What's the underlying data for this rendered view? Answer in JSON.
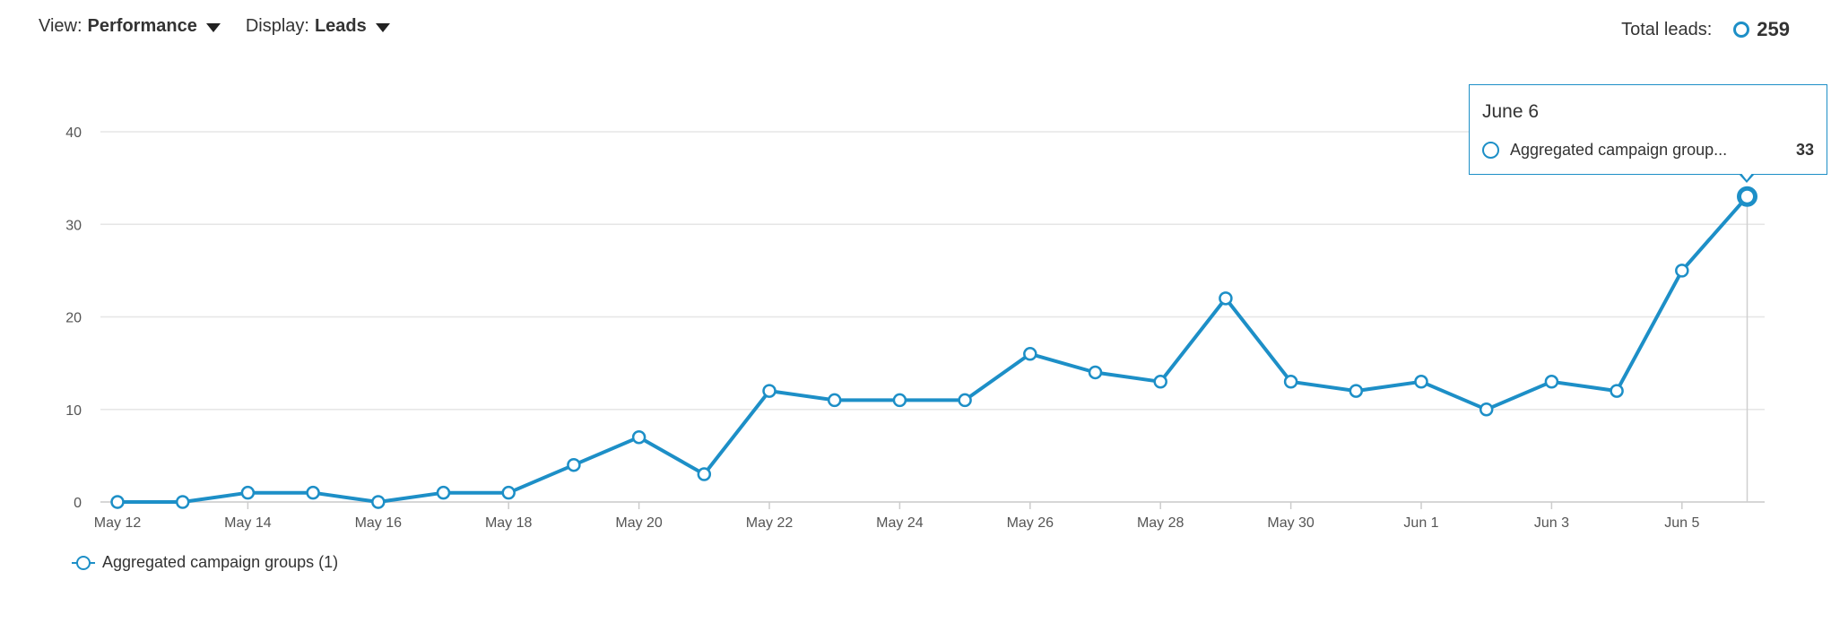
{
  "toolbar": {
    "view_label": "View:",
    "view_value": "Performance",
    "display_label": "Display:",
    "display_value": "Leads"
  },
  "total": {
    "label": "Total leads:",
    "value": "259"
  },
  "tooltip": {
    "date": "June 6",
    "series_label": "Aggregated campaign group...",
    "value": "33"
  },
  "legend": {
    "label": "Aggregated campaign groups (1)"
  },
  "colors": {
    "series": "#1d8fc7",
    "grid": "#e6e6e6"
  },
  "chart_data": {
    "type": "line",
    "title": "",
    "xlabel": "",
    "ylabel": "",
    "ylim": [
      0,
      40
    ],
    "yticks": [
      0,
      10,
      20,
      30,
      40
    ],
    "x": [
      "May 12",
      "May 13",
      "May 14",
      "May 15",
      "May 16",
      "May 17",
      "May 18",
      "May 19",
      "May 20",
      "May 21",
      "May 22",
      "May 23",
      "May 24",
      "May 25",
      "May 26",
      "May 27",
      "May 28",
      "May 29",
      "May 30",
      "May 31",
      "Jun 1",
      "Jun 2",
      "Jun 3",
      "Jun 4",
      "Jun 5",
      "Jun 6"
    ],
    "xtick_labels": [
      "May 12",
      "May 14",
      "May 16",
      "May 18",
      "May 20",
      "May 22",
      "May 24",
      "May 26",
      "May 28",
      "May 30",
      "Jun 1",
      "Jun 3",
      "Jun 5"
    ],
    "series": [
      {
        "name": "Aggregated campaign groups (1)",
        "values": [
          0,
          0,
          1,
          1,
          0,
          1,
          1,
          4,
          7,
          3,
          12,
          11,
          11,
          11,
          16,
          14,
          13,
          22,
          13,
          12,
          13,
          10,
          13,
          12,
          25,
          33
        ]
      }
    ],
    "highlight_index": 25,
    "grid": true,
    "legend_position": "bottom-left"
  }
}
